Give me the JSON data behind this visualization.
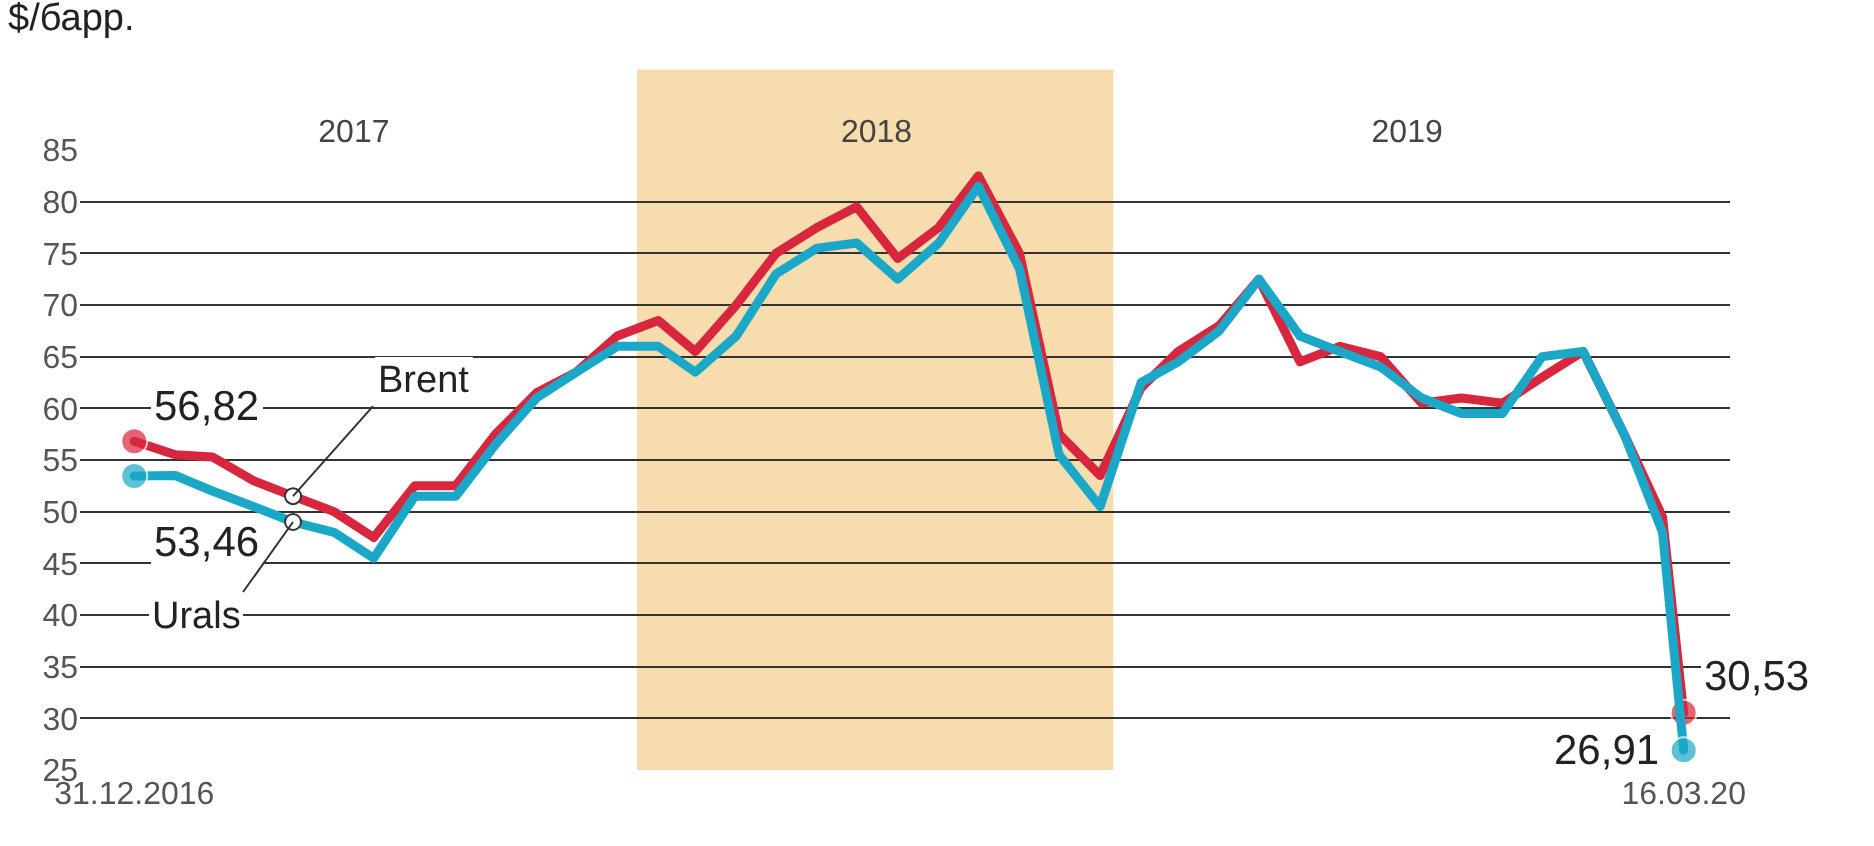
{
  "chart_data": {
    "type": "line",
    "ylabel": "$/барр.",
    "x": [
      "2016-12-31",
      "2017-01-31",
      "2017-02-28",
      "2017-03-31",
      "2017-04-30",
      "2017-05-31",
      "2017-06-30",
      "2017-07-31",
      "2017-08-31",
      "2017-09-30",
      "2017-10-31",
      "2017-11-30",
      "2017-12-31",
      "2018-01-31",
      "2018-02-28",
      "2018-03-31",
      "2018-04-30",
      "2018-05-31",
      "2018-06-30",
      "2018-07-31",
      "2018-08-31",
      "2018-09-30",
      "2018-10-31",
      "2018-11-30",
      "2018-12-31",
      "2019-01-31",
      "2019-02-28",
      "2019-03-31",
      "2019-04-30",
      "2019-05-31",
      "2019-06-30",
      "2019-07-31",
      "2019-08-31",
      "2019-09-30",
      "2019-10-31",
      "2019-11-30",
      "2019-12-31",
      "2020-01-31",
      "2020-02-29",
      "2020-03-16"
    ],
    "series": [
      {
        "name": "Brent",
        "color": "#d7263d",
        "values": [
          56.82,
          55.5,
          55.3,
          53,
          51.5,
          50,
          47.5,
          52.5,
          52.5,
          57.5,
          61.5,
          63.5,
          67,
          68.5,
          65.5,
          70,
          75,
          77.5,
          79.5,
          74.5,
          77.5,
          82.5,
          75,
          57.5,
          53.5,
          62,
          65.5,
          68,
          72.5,
          64.5,
          66,
          65,
          60.5,
          61,
          60.5,
          63,
          65.5,
          57.5,
          49.5,
          30.53
        ],
        "value_labels": [
          "56,82",
          null,
          null,
          null,
          null,
          null,
          null,
          null,
          null,
          null,
          null,
          null,
          null,
          null,
          null,
          null,
          null,
          null,
          null,
          null,
          null,
          null,
          null,
          null,
          null,
          null,
          null,
          null,
          null,
          null,
          null,
          null,
          null,
          null,
          null,
          null,
          null,
          null,
          null,
          "30,53"
        ]
      },
      {
        "name": "Urals",
        "color": "#1ba8c8",
        "values": [
          53.46,
          53.5,
          52,
          50.5,
          49,
          48,
          45.5,
          51.5,
          51.5,
          56.5,
          61,
          63.5,
          66,
          66,
          63.5,
          67,
          73,
          75.5,
          76,
          72.5,
          76,
          81.5,
          73.5,
          55.5,
          50.5,
          62.5,
          64.5,
          67.5,
          72.5,
          67,
          65.5,
          64,
          61,
          59.5,
          59.5,
          65,
          65.5,
          57.5,
          48,
          26.91
        ],
        "value_labels": [
          "53,46",
          null,
          null,
          null,
          null,
          null,
          null,
          null,
          null,
          null,
          null,
          null,
          null,
          null,
          null,
          null,
          null,
          null,
          null,
          null,
          null,
          null,
          null,
          null,
          null,
          null,
          null,
          null,
          null,
          null,
          null,
          null,
          null,
          null,
          null,
          null,
          null,
          null,
          null,
          "26,91"
        ]
      }
    ],
    "xlim": [
      "2016-11-20",
      "2020-04-20"
    ],
    "xticks": [
      {
        "value": "2016-12-31",
        "label": "31.12.2016"
      },
      {
        "value": "2020-03-16",
        "label": "16.03.20"
      }
    ],
    "x2lim": [
      "2016-11-20",
      "2020-04-20"
    ],
    "x2ticks": [
      {
        "value": "2017-06-15",
        "label": "2017"
      },
      {
        "value": "2018-07-15",
        "label": "2018"
      },
      {
        "value": "2019-08-20",
        "label": "2019"
      }
    ],
    "ylim": [
      25,
      85
    ],
    "yticks": [
      25,
      30,
      35,
      40,
      45,
      50,
      55,
      60,
      65,
      70,
      75,
      80,
      85
    ],
    "bands": [
      {
        "axis": "x",
        "from": "2018-01-15",
        "to": "2019-01-10",
        "color": "#f7dcae"
      }
    ],
    "grid": "y",
    "line_style": "solid"
  }
}
